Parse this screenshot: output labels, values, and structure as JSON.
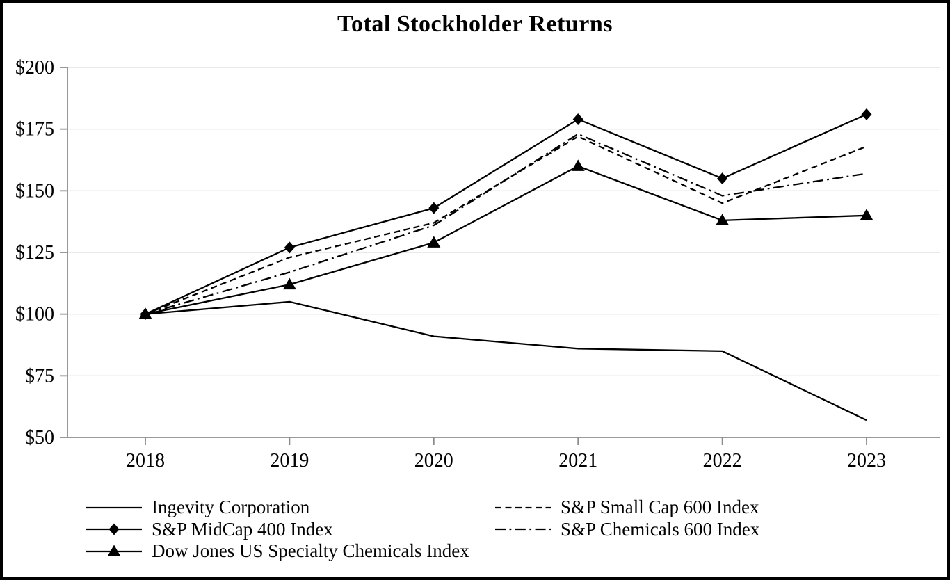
{
  "chart_data": {
    "type": "line",
    "title": "Total Stockholder Returns",
    "xlabel": "",
    "ylabel": "",
    "categories": [
      "2018",
      "2019",
      "2020",
      "2021",
      "2022",
      "2023"
    ],
    "ylim": [
      50,
      200
    ],
    "yticks": [
      {
        "value": 50,
        "label": "$50"
      },
      {
        "value": 75,
        "label": "$75"
      },
      {
        "value": 100,
        "label": "$100"
      },
      {
        "value": 125,
        "label": "$125"
      },
      {
        "value": 150,
        "label": "$150"
      },
      {
        "value": 175,
        "label": "$175"
      },
      {
        "value": 200,
        "label": "$200"
      }
    ],
    "grid": "horizontal",
    "legend_position": "bottom-two-columns",
    "series": [
      {
        "name": "Ingevity Corporation",
        "values": [
          100,
          105,
          91,
          86,
          85,
          57
        ],
        "line": "solid",
        "marker": "none",
        "legend_column": "left"
      },
      {
        "name": "S&P MidCap 400 Index",
        "values": [
          100,
          127,
          143,
          179,
          155,
          181
        ],
        "line": "solid",
        "marker": "diamond",
        "legend_column": "left"
      },
      {
        "name": "Dow Jones US Specialty Chemicals Index",
        "values": [
          100,
          112,
          129,
          160,
          138,
          140
        ],
        "line": "solid",
        "marker": "triangle",
        "legend_column": "left"
      },
      {
        "name": "S&P Small Cap 600 Index",
        "values": [
          100,
          123,
          137,
          172,
          145,
          168
        ],
        "line": "dashed",
        "marker": "none",
        "legend_column": "right"
      },
      {
        "name": "S&P Chemicals 600 Index",
        "values": [
          100,
          117,
          136,
          173,
          148,
          157
        ],
        "line": "dashdot",
        "marker": "none",
        "legend_column": "right"
      }
    ],
    "colors": {
      "line": "#000000",
      "axis": "#8c8c8c",
      "grid": "#e2e2e2",
      "background": "#ffffff",
      "border": "#000000"
    }
  }
}
